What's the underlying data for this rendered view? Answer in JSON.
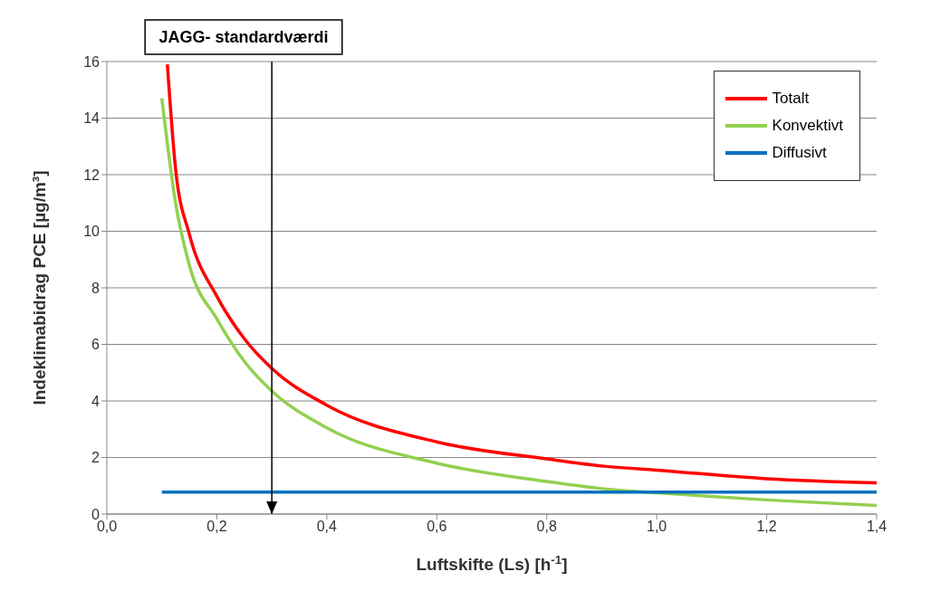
{
  "chart_data": {
    "type": "line",
    "xlabel": "Luftskifte (Ls) [h$^{-1}$]",
    "ylabel": "Indeklimabidrag PCE [µg/m³]",
    "xlim": [
      0,
      1.4
    ],
    "xticks": [
      {
        "value": 0,
        "label": "0,0"
      },
      {
        "value": 0.2,
        "label": "0,2"
      },
      {
        "value": 0.4,
        "label": "0,4"
      },
      {
        "value": 0.6,
        "label": "0,6"
      },
      {
        "value": 0.8,
        "label": "0,8"
      },
      {
        "value": 1,
        "label": "1,0"
      },
      {
        "value": 1.2,
        "label": "1,2"
      },
      {
        "value": 1.4,
        "label": "1,4"
      }
    ],
    "ylim": [
      0,
      16
    ],
    "yticks": [
      0,
      2,
      4,
      6,
      8,
      10,
      12,
      14,
      16
    ],
    "grid": "y",
    "legend": "top right",
    "marker": "none",
    "line_style": "solid",
    "series": [
      {
        "name": "Totalt",
        "color": "#ff0000",
        "x": [
          0.11,
          0.125,
          0.15,
          0.2,
          0.25,
          0.3,
          0.4,
          0.6,
          0.8,
          0.9,
          1.0,
          1.2,
          1.4
        ],
        "values": [
          15.9,
          12.2,
          9.9,
          7.7,
          6.2,
          5.15,
          3.85,
          2.55,
          1.95,
          1.7,
          1.55,
          1.25,
          1.1
        ]
      },
      {
        "name": "Konvektivt",
        "color": "#92d050",
        "x": [
          0.1,
          0.125,
          0.15,
          0.2,
          0.25,
          0.3,
          0.4,
          0.6,
          0.8,
          0.9,
          1.0,
          1.2,
          1.4
        ],
        "values": [
          14.7,
          11,
          8.8,
          6.9,
          5.4,
          4.35,
          3.05,
          1.8,
          1.15,
          0.9,
          0.75,
          0.5,
          0.3
        ]
      },
      {
        "name": "Diffusivt",
        "color": "#0070c0",
        "x": [
          0.1,
          1.4
        ],
        "values": [
          0.78,
          0.78
        ]
      }
    ],
    "ref_lines": [
      {
        "axis": "x",
        "value": 0.3,
        "label": "JAGG- standardværdi",
        "color": "#000000"
      }
    ]
  }
}
